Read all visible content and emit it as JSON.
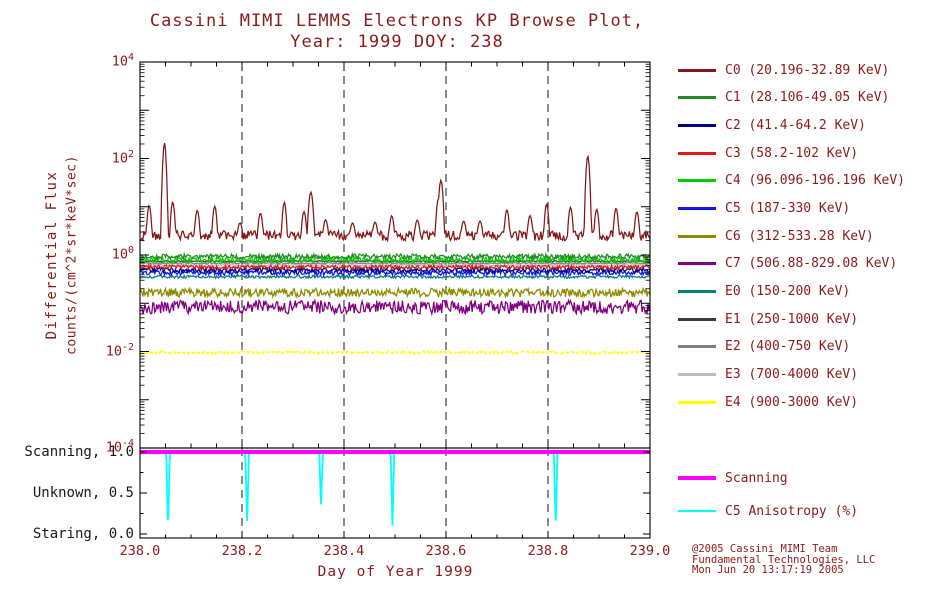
{
  "title": {
    "line1": "Cassini MIMI LEMMS Electrons KP Browse Plot,",
    "line2": "Year: 1999 DOY: 238"
  },
  "axes": {
    "y_label_line1": "Differential Flux",
    "y_label_line2": "counts/(cm^2*sr*keV*sec)",
    "x_label": "Day of Year 1999",
    "x_ticks": [
      "238.0",
      "238.2",
      "238.4",
      "238.6",
      "238.8",
      "239.0"
    ],
    "y_tick_base": "10",
    "y_tick_exponents": [
      "4",
      "2",
      "0",
      "-2",
      "-4"
    ]
  },
  "panel": {
    "labels": [
      {
        "text": "Scanning, 1.0"
      },
      {
        "text": "Unknown, 0.5"
      },
      {
        "text": "Staring, 0.0"
      }
    ]
  },
  "legend": {
    "items": [
      {
        "name": "C0",
        "label": "C0 (20.196-32.89 KeV)",
        "color": "#841617"
      },
      {
        "name": "C1",
        "label": "C1 (28.106-49.05 KeV)",
        "color": "#228B22"
      },
      {
        "name": "C2",
        "label": "C2 (41.4-64.2 KeV)",
        "color": "#00008B"
      },
      {
        "name": "C3",
        "label": "C3 (58.2-102 KeV)",
        "color": "#E51616"
      },
      {
        "name": "C4",
        "label": "C4 (96.096-196.196 KeV)",
        "color": "#00CD00"
      },
      {
        "name": "C5",
        "label": "C5 (187-330 KeV)",
        "color": "#1414E8"
      },
      {
        "name": "C6",
        "label": "C6 (312-533.28 KeV)",
        "color": "#8B8B00"
      },
      {
        "name": "C7",
        "label": "C7 (506.88-829.08 KeV)",
        "color": "#800080"
      },
      {
        "name": "E0",
        "label": "E0 (150-200 KeV)",
        "color": "#008080"
      },
      {
        "name": "E1",
        "label": "E1 (250-1000 KeV)",
        "color": "#3C3C3C"
      },
      {
        "name": "E2",
        "label": "E2 (400-750 KeV)",
        "color": "#808080"
      },
      {
        "name": "E3",
        "label": "E3 (700-4000 KeV)",
        "color": "#BEBEBE"
      },
      {
        "name": "E4",
        "label": "E4 (900-3000 KeV)",
        "color": "#FFFF00"
      }
    ]
  },
  "panel_legend": {
    "items": [
      {
        "name": "scanning",
        "label": "Scanning",
        "color": "#FF00FF",
        "thickness": 4
      },
      {
        "name": "c5-anisotropy",
        "label": "C5 Anisotropy (%)",
        "color": "#00FFFF",
        "thickness": 2
      }
    ]
  },
  "credit": {
    "line1": "@2005 Cassini MIMI Team",
    "line2": "Fundamental Technologies, LLC",
    "line3": "Mon Jun 20 13:17:19 2005"
  },
  "chart_data": {
    "type": "line",
    "title": "Cassini MIMI LEMMS Electrons KP Browse Plot, Year: 1999 DOY: 238",
    "xlabel": "Day of Year 1999",
    "ylabel": "Differential Flux counts/(cm^2*sr*keV*sec)",
    "x_range": [
      238.0,
      239.0
    ],
    "y_scale": "log",
    "y_range_exp": [
      -4,
      4
    ],
    "x_gridlines": [
      238.2,
      238.4,
      238.6,
      238.8
    ],
    "n_points": 520,
    "series": [
      {
        "name": "E3",
        "color": "#BEBEBE",
        "log_level": -0.21,
        "noise": 0.015
      },
      {
        "name": "E2",
        "color": "#808080",
        "log_level": -0.17,
        "noise": 0.015
      },
      {
        "name": "E1",
        "color": "#3C3C3C",
        "log_level": -0.13,
        "noise": 0.015
      },
      {
        "name": "E0",
        "color": "#008080",
        "log_level": -0.45,
        "noise": 0.03
      },
      {
        "name": "C6",
        "color": "#8B8B00",
        "log_level": -0.78,
        "noise": 0.09
      },
      {
        "name": "C7",
        "color": "#800080",
        "log_level": -1.08,
        "noise": 0.14
      },
      {
        "name": "E4",
        "color": "#FFFF00",
        "log_level": -2.02,
        "noise": 0.025,
        "width": 1.6,
        "dash": "4 2.5"
      },
      {
        "name": "C5",
        "color": "#1414E8",
        "log_level": -0.37,
        "noise": 0.05
      },
      {
        "name": "C2",
        "color": "#00008B",
        "log_level": -0.31,
        "noise": 0.05
      },
      {
        "name": "C3",
        "color": "#E51616",
        "log_level": -0.25,
        "noise": 0.04
      },
      {
        "name": "C4",
        "color": "#00CD00",
        "log_level": -0.1,
        "noise": 0.07
      },
      {
        "name": "C1",
        "color": "#228B22",
        "log_level": -0.03,
        "noise": 0.05
      },
      {
        "name": "C0",
        "color": "#841617",
        "log_level": 0.4,
        "noise": 0.1,
        "minor_spikes": {
          "interval": 0.0435,
          "min": 0.25,
          "max": 0.75
        },
        "spikes": [
          {
            "x": 238.048,
            "log_peak": 2.32
          },
          {
            "x": 238.335,
            "log_peak": 1.3
          },
          {
            "x": 238.59,
            "log_peak": 1.55
          },
          {
            "x": 238.878,
            "log_peak": 2.05
          }
        ]
      }
    ],
    "bottom_panel": {
      "y_ticks": [
        0.0,
        0.5,
        1.0
      ],
      "y_tick_meanings": [
        "Staring",
        "Unknown",
        "Scanning"
      ],
      "scanning_value": 1.0,
      "anisotropy_baseline": 1.0,
      "anisotropy_dips": [
        {
          "x": 238.055,
          "min": 0.04
        },
        {
          "x": 238.21,
          "min": 0.1
        },
        {
          "x": 238.355,
          "min": 0.33
        },
        {
          "x": 238.495,
          "min": 0.1
        },
        {
          "x": 238.815,
          "min": 0.07
        }
      ]
    }
  }
}
